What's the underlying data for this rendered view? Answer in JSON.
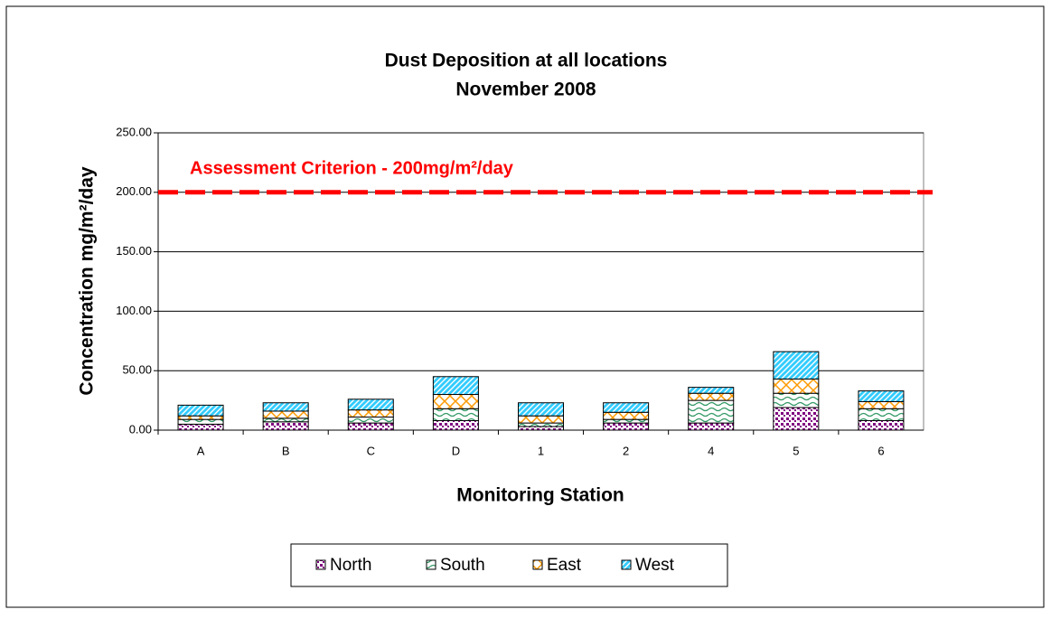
{
  "chart_data": {
    "type": "stacked_bar",
    "title": "Dust Deposition at all locations",
    "subtitle": "November 2008",
    "x_label": "Monitoring Station",
    "y_label": "Concentration mg/m²/day",
    "categories": [
      "A",
      "B",
      "C",
      "D",
      "1",
      "2",
      "4",
      "5",
      "6"
    ],
    "series": [
      {
        "name": "North",
        "color": "#800080",
        "pattern": "dots",
        "values": [
          5,
          7,
          6,
          8,
          3,
          6,
          6,
          19,
          8
        ]
      },
      {
        "name": "South",
        "color": "#339966",
        "pattern": "waves",
        "values": [
          4,
          3,
          5,
          10,
          3,
          3,
          19,
          12,
          10
        ]
      },
      {
        "name": "East",
        "color": "#ff9900",
        "pattern": "cross",
        "values": [
          3,
          6,
          6,
          12,
          6,
          6,
          6,
          12,
          6
        ]
      },
      {
        "name": "West",
        "color": "#33ccff",
        "pattern": "diagonal",
        "values": [
          9,
          7,
          9,
          15,
          11,
          8,
          5,
          23,
          9
        ]
      }
    ],
    "ylim": [
      0,
      250
    ],
    "yticks": [
      {
        "value": 0,
        "label": "0.00"
      },
      {
        "value": 50,
        "label": "50.00"
      },
      {
        "value": 100,
        "label": "100.00"
      },
      {
        "value": 150,
        "label": "150.00"
      },
      {
        "value": 200,
        "label": "200.00"
      },
      {
        "value": 250,
        "label": "250.00"
      }
    ],
    "grid": true,
    "reference_line": {
      "value": 200,
      "label": "Assessment Criterion - 200mg/m²/day",
      "color": "#ff0000"
    },
    "legend": "bottom"
  }
}
